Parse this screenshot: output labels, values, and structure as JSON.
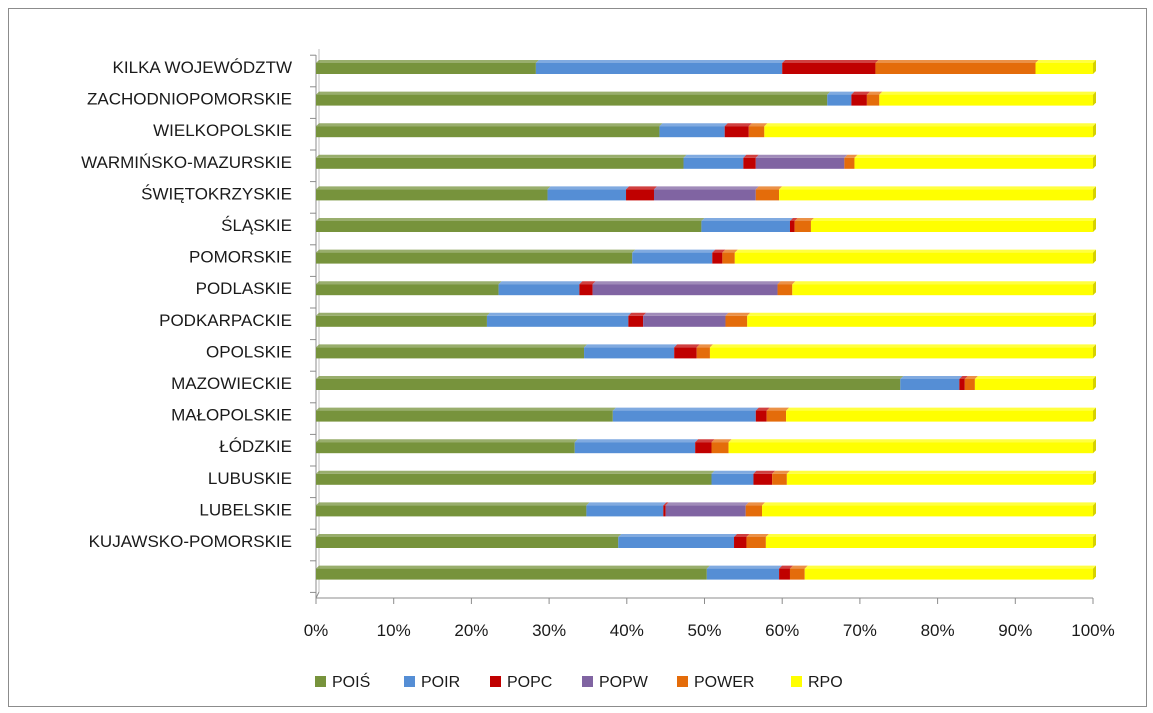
{
  "chart_data": {
    "type": "bar",
    "orientation": "horizontal",
    "stacked": "percent",
    "title": "",
    "xlabel": "",
    "ylabel": "",
    "xlim": [
      0,
      100
    ],
    "x_ticks": [
      "0%",
      "10%",
      "20%",
      "30%",
      "40%",
      "50%",
      "60%",
      "70%",
      "80%",
      "90%",
      "100%"
    ],
    "grid": false,
    "legend_position": "bottom",
    "categories": [
      "KILKA WOJEWÓDZTW",
      "ZACHODNIOPOMORSKIE",
      "WIELKOPOLSKIE",
      "WARMIŃSKO-MAZURSKIE",
      "ŚWIĘTOKRZYSKIE",
      "ŚLĄSKIE",
      "POMORSKIE",
      "PODLASKIE",
      "PODKARPACKIE",
      "OPOLSKIE",
      "MAZOWIECKIE",
      "MAŁOPOLSKIE",
      "ŁÓDZKIE",
      "LUBUSKIE",
      "LUBELSKIE",
      "KUJAWSKO-POMORSKIE",
      ""
    ],
    "series": [
      {
        "name": "POIŚ",
        "color": "#77933c",
        "values": [
          28.3,
          65.8,
          44.2,
          47.3,
          29.8,
          49.6,
          40.7,
          23.5,
          22.0,
          34.5,
          75.2,
          38.2,
          33.3,
          50.9,
          34.8,
          38.9,
          50.3
        ]
      },
      {
        "name": "POIR",
        "color": "#558ed5",
        "values": [
          31.7,
          3.1,
          8.4,
          7.7,
          10.1,
          11.4,
          10.3,
          10.4,
          18.2,
          11.6,
          7.6,
          18.4,
          15.5,
          5.4,
          9.9,
          14.9,
          9.3
        ]
      },
      {
        "name": "POPC",
        "color": "#c00000",
        "values": [
          12.0,
          2.0,
          3.1,
          1.6,
          3.6,
          0.6,
          1.3,
          1.7,
          1.9,
          2.9,
          0.7,
          1.4,
          2.1,
          2.4,
          0.3,
          1.6,
          1.4
        ]
      },
      {
        "name": "POPW",
        "color": "#8064a2",
        "values": [
          0.0,
          0.0,
          0.0,
          11.4,
          13.1,
          0.0,
          0.0,
          23.8,
          10.6,
          0.0,
          0.0,
          0.0,
          0.0,
          0.0,
          10.3,
          0.0,
          0.0
        ]
      },
      {
        "name": "POWER",
        "color": "#e46c0a",
        "values": [
          20.6,
          1.6,
          2.0,
          1.3,
          3.0,
          2.1,
          1.6,
          1.9,
          2.8,
          1.7,
          1.3,
          2.5,
          2.2,
          1.9,
          2.1,
          2.5,
          1.9
        ]
      },
      {
        "name": "RPO",
        "color": "#ffff00",
        "values": [
          7.4,
          27.5,
          42.3,
          30.7,
          40.4,
          36.3,
          46.1,
          38.7,
          44.5,
          49.3,
          15.2,
          39.5,
          46.9,
          39.4,
          42.6,
          42.1,
          37.1
        ]
      }
    ]
  }
}
